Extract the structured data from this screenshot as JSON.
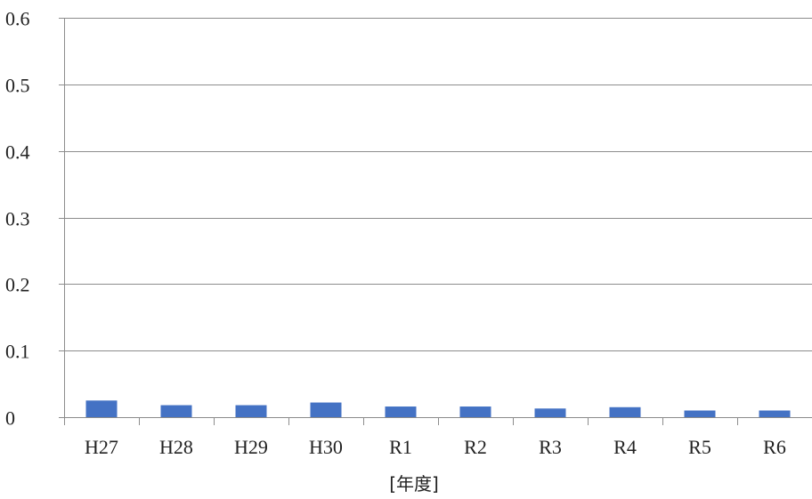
{
  "chart_data": {
    "type": "bar",
    "categories": [
      "H27",
      "H28",
      "H29",
      "H30",
      "R1",
      "R2",
      "R3",
      "R4",
      "R5",
      "R6"
    ],
    "values": [
      0.025,
      0.018,
      0.018,
      0.022,
      0.016,
      0.016,
      0.013,
      0.015,
      0.01,
      0.01
    ],
    "ylim": [
      0,
      0.6
    ],
    "yticks": [
      "0",
      "0.1",
      "0.2",
      "0.3",
      "0.4",
      "0.5",
      "0.6"
    ],
    "yticks_values": [
      0,
      0.1,
      0.2,
      0.3,
      0.4,
      0.5,
      0.6
    ],
    "title": "",
    "xlabel": "[年度]",
    "ylabel": "",
    "grid": "horizontal",
    "legend": "none",
    "colors": {
      "bar": "#4472c4",
      "grid": "#8c8c8c",
      "axis": "#8c8c8c"
    }
  }
}
